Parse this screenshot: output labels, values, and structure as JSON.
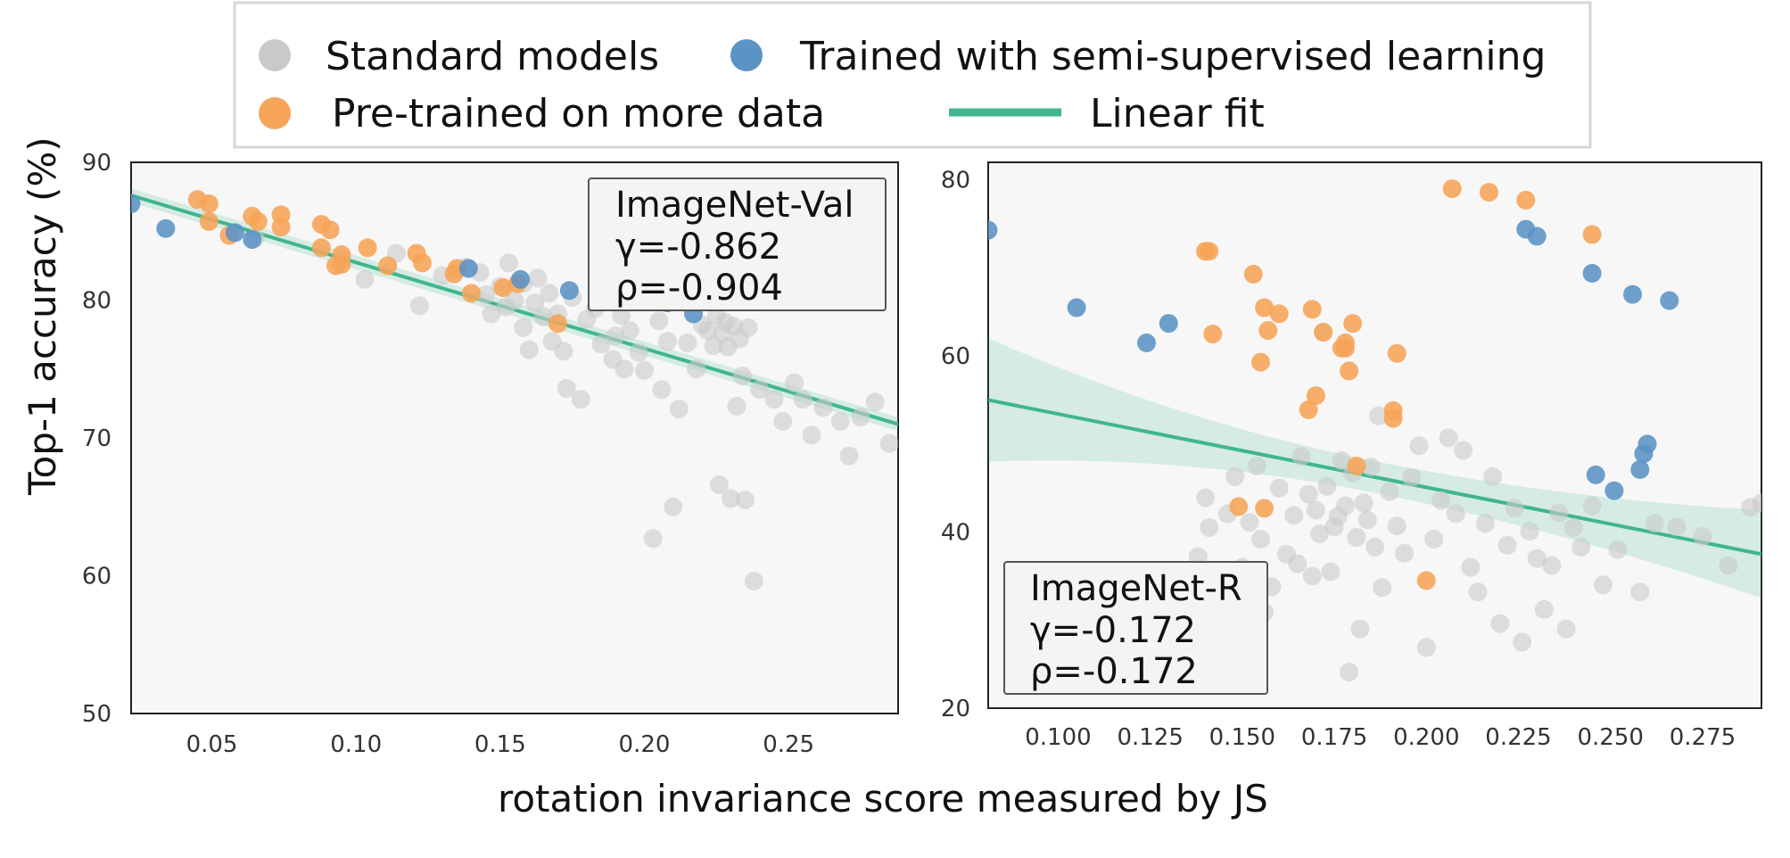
{
  "colors": {
    "standard": "#c9c9c9",
    "semi": "#5b93c5",
    "pretrained": "#f6a457",
    "fit": "#3fb68e"
  },
  "legend": {
    "standard": "Standard models",
    "semi": "Trained with semi-supervised learning",
    "pretrained": "Pre-trained on more data",
    "fit": "Linear fit"
  },
  "ylabel": "Top-1 accuracy (%)",
  "xlabel": "rotation invariance score measured by JS",
  "chart_data": [
    {
      "type": "scatter",
      "name": "ImageNet-Val",
      "annotation": {
        "title": "ImageNet-Val",
        "gamma": "γ=-0.862",
        "rho": "ρ=-0.904"
      },
      "xlim": [
        0.022,
        0.288
      ],
      "ylim": [
        50,
        90
      ],
      "xticks": [
        0.05,
        0.1,
        0.15,
        0.2,
        0.25
      ],
      "xtick_labels": [
        "0.05",
        "0.10",
        "0.15",
        "0.20",
        "0.25"
      ],
      "yticks": [
        50,
        60,
        70,
        80,
        90
      ],
      "ytick_labels": [
        "50",
        "60",
        "70",
        "80",
        "90"
      ],
      "fit": {
        "x": [
          0.022,
          0.288
        ],
        "y": [
          87.6,
          71.0
        ],
        "band": 0.5
      },
      "series": [
        {
          "name": "Standard models",
          "key": "standard",
          "points": [
            [
              0.065,
              84.5
            ],
            [
              0.103,
              81.5
            ],
            [
              0.114,
              83.4
            ],
            [
              0.122,
              79.6
            ],
            [
              0.13,
              81.8
            ],
            [
              0.138,
              82.4
            ],
            [
              0.143,
              82.0
            ],
            [
              0.145,
              80.4
            ],
            [
              0.147,
              79.0
            ],
            [
              0.15,
              81.0
            ],
            [
              0.152,
              79.5
            ],
            [
              0.153,
              82.7
            ],
            [
              0.155,
              80.0
            ],
            [
              0.158,
              81.2
            ],
            [
              0.158,
              78.0
            ],
            [
              0.16,
              76.4
            ],
            [
              0.162,
              79.8
            ],
            [
              0.163,
              81.6
            ],
            [
              0.165,
              78.8
            ],
            [
              0.167,
              80.5
            ],
            [
              0.168,
              77.0
            ],
            [
              0.17,
              79.0
            ],
            [
              0.172,
              76.3
            ],
            [
              0.173,
              73.6
            ],
            [
              0.175,
              80.2
            ],
            [
              0.178,
              72.8
            ],
            [
              0.18,
              78.6
            ],
            [
              0.183,
              79.4
            ],
            [
              0.185,
              76.8
            ],
            [
              0.187,
              80.0
            ],
            [
              0.189,
              75.7
            ],
            [
              0.19,
              77.4
            ],
            [
              0.192,
              78.9
            ],
            [
              0.193,
              75.0
            ],
            [
              0.195,
              77.8
            ],
            [
              0.198,
              76.2
            ],
            [
              0.2,
              74.9
            ],
            [
              0.203,
              62.7
            ],
            [
              0.205,
              78.5
            ],
            [
              0.206,
              73.5
            ],
            [
              0.208,
              77.0
            ],
            [
              0.21,
              65.0
            ],
            [
              0.212,
              72.1
            ],
            [
              0.215,
              76.9
            ],
            [
              0.218,
              75.0
            ],
            [
              0.22,
              78.2
            ],
            [
              0.222,
              77.8
            ],
            [
              0.224,
              76.7
            ],
            [
              0.225,
              78.9
            ],
            [
              0.226,
              66.6
            ],
            [
              0.227,
              77.6
            ],
            [
              0.228,
              78.4
            ],
            [
              0.229,
              76.6
            ],
            [
              0.23,
              65.6
            ],
            [
              0.231,
              78.1
            ],
            [
              0.232,
              72.3
            ],
            [
              0.233,
              77.2
            ],
            [
              0.234,
              74.5
            ],
            [
              0.235,
              65.5
            ],
            [
              0.236,
              78.0
            ],
            [
              0.238,
              59.6
            ],
            [
              0.24,
              73.5
            ],
            [
              0.245,
              72.8
            ],
            [
              0.248,
              71.2
            ],
            [
              0.252,
              74.0
            ],
            [
              0.255,
              72.8
            ],
            [
              0.258,
              70.2
            ],
            [
              0.262,
              72.2
            ],
            [
              0.268,
              71.2
            ],
            [
              0.271,
              68.7
            ],
            [
              0.275,
              71.5
            ],
            [
              0.28,
              72.6
            ],
            [
              0.285,
              69.6
            ]
          ]
        },
        {
          "name": "Pre-trained on more data",
          "key": "pretrained",
          "points": [
            [
              0.045,
              87.3
            ],
            [
              0.049,
              87.0
            ],
            [
              0.049,
              85.7
            ],
            [
              0.056,
              84.7
            ],
            [
              0.064,
              86.1
            ],
            [
              0.066,
              85.7
            ],
            [
              0.074,
              86.2
            ],
            [
              0.074,
              85.3
            ],
            [
              0.088,
              85.5
            ],
            [
              0.088,
              83.8
            ],
            [
              0.091,
              85.1
            ],
            [
              0.093,
              82.5
            ],
            [
              0.095,
              83.3
            ],
            [
              0.095,
              82.6
            ],
            [
              0.104,
              83.8
            ],
            [
              0.111,
              82.5
            ],
            [
              0.121,
              83.4
            ],
            [
              0.123,
              82.7
            ],
            [
              0.134,
              81.9
            ],
            [
              0.135,
              82.3
            ],
            [
              0.14,
              80.5
            ],
            [
              0.151,
              80.9
            ],
            [
              0.156,
              81.2
            ],
            [
              0.17,
              78.3
            ]
          ]
        },
        {
          "name": "Trained with semi-supervised learning",
          "key": "semi",
          "points": [
            [
              0.022,
              87.0
            ],
            [
              0.034,
              85.2
            ],
            [
              0.058,
              84.9
            ],
            [
              0.064,
              84.4
            ],
            [
              0.139,
              82.3
            ],
            [
              0.157,
              81.5
            ],
            [
              0.174,
              80.7
            ],
            [
              0.184,
              80.2
            ],
            [
              0.194,
              80.8
            ],
            [
              0.197,
              80.6
            ],
            [
              0.201,
              80.1
            ],
            [
              0.208,
              79.8
            ],
            [
              0.217,
              79.0
            ]
          ]
        }
      ]
    },
    {
      "type": "scatter",
      "name": "ImageNet-R",
      "annotation": {
        "title": "ImageNet-R",
        "gamma": "γ=-0.172",
        "rho": "ρ=-0.172"
      },
      "xlim": [
        0.081,
        0.291
      ],
      "ylim": [
        20,
        82
      ],
      "xticks": [
        0.1,
        0.125,
        0.15,
        0.175,
        0.2,
        0.225,
        0.25,
        0.275
      ],
      "xtick_labels": [
        "0.100",
        "0.125",
        "0.150",
        "0.175",
        "0.200",
        "0.225",
        "0.250",
        "0.275"
      ],
      "yticks": [
        20,
        40,
        60,
        80
      ],
      "ytick_labels": [
        "20",
        "40",
        "60",
        "80"
      ],
      "fit": {
        "x": [
          0.081,
          0.291
        ],
        "y": [
          55.0,
          37.5
        ],
        "band_left": 7.0,
        "band_mid": 1.8,
        "band_right": 5.0
      },
      "series": [
        {
          "name": "Standard models",
          "key": "standard",
          "points": [
            [
              0.135,
              35.3
            ],
            [
              0.138,
              37.2
            ],
            [
              0.14,
              43.9
            ],
            [
              0.141,
              40.5
            ],
            [
              0.145,
              34.8
            ],
            [
              0.146,
              42.1
            ],
            [
              0.148,
              46.3
            ],
            [
              0.15,
              36.0
            ],
            [
              0.152,
              41.1
            ],
            [
              0.154,
              47.5
            ],
            [
              0.155,
              39.2
            ],
            [
              0.156,
              30.9
            ],
            [
              0.158,
              33.8
            ],
            [
              0.16,
              45.0
            ],
            [
              0.162,
              37.5
            ],
            [
              0.164,
              41.9
            ],
            [
              0.165,
              36.4
            ],
            [
              0.166,
              48.6
            ],
            [
              0.168,
              44.3
            ],
            [
              0.169,
              35.0
            ],
            [
              0.17,
              42.5
            ],
            [
              0.171,
              39.8
            ],
            [
              0.172,
              62.7
            ],
            [
              0.173,
              45.2
            ],
            [
              0.174,
              35.5
            ],
            [
              0.175,
              40.6
            ],
            [
              0.176,
              41.8
            ],
            [
              0.177,
              48.1
            ],
            [
              0.178,
              43.0
            ],
            [
              0.179,
              24.1
            ],
            [
              0.18,
              46.7
            ],
            [
              0.181,
              39.4
            ],
            [
              0.182,
              29.0
            ],
            [
              0.183,
              43.3
            ],
            [
              0.184,
              41.4
            ],
            [
              0.185,
              47.4
            ],
            [
              0.186,
              38.3
            ],
            [
              0.187,
              53.2
            ],
            [
              0.188,
              33.7
            ],
            [
              0.19,
              44.6
            ],
            [
              0.192,
              40.7
            ],
            [
              0.194,
              37.6
            ],
            [
              0.196,
              46.2
            ],
            [
              0.198,
              49.8
            ],
            [
              0.2,
              26.9
            ],
            [
              0.202,
              39.2
            ],
            [
              0.204,
              43.6
            ],
            [
              0.206,
              50.7
            ],
            [
              0.208,
              42.1
            ],
            [
              0.21,
              49.3
            ],
            [
              0.212,
              36.0
            ],
            [
              0.214,
              33.2
            ],
            [
              0.216,
              41.0
            ],
            [
              0.218,
              46.3
            ],
            [
              0.22,
              29.6
            ],
            [
              0.222,
              38.5
            ],
            [
              0.224,
              42.7
            ],
            [
              0.226,
              27.5
            ],
            [
              0.228,
              40.1
            ],
            [
              0.23,
              37.0
            ],
            [
              0.232,
              31.2
            ],
            [
              0.234,
              36.2
            ],
            [
              0.236,
              42.2
            ],
            [
              0.238,
              29.0
            ],
            [
              0.24,
              40.5
            ],
            [
              0.242,
              38.3
            ],
            [
              0.245,
              43.0
            ],
            [
              0.248,
              34.0
            ],
            [
              0.252,
              38.0
            ],
            [
              0.258,
              33.2
            ],
            [
              0.262,
              41.0
            ],
            [
              0.268,
              40.6
            ],
            [
              0.275,
              39.5
            ],
            [
              0.282,
              36.2
            ],
            [
              0.288,
              42.8
            ],
            [
              0.291,
              43.3
            ]
          ]
        },
        {
          "name": "Pre-trained on more data",
          "key": "pretrained",
          "points": [
            [
              0.14,
              71.9
            ],
            [
              0.141,
              71.9
            ],
            [
              0.142,
              62.5
            ],
            [
              0.149,
              42.9
            ],
            [
              0.153,
              69.3
            ],
            [
              0.155,
              59.3
            ],
            [
              0.156,
              65.5
            ],
            [
              0.156,
              42.7
            ],
            [
              0.157,
              62.9
            ],
            [
              0.16,
              64.8
            ],
            [
              0.168,
              53.9
            ],
            [
              0.169,
              65.3
            ],
            [
              0.17,
              55.5
            ],
            [
              0.172,
              62.7
            ],
            [
              0.177,
              60.9
            ],
            [
              0.178,
              61.5
            ],
            [
              0.178,
              60.9
            ],
            [
              0.179,
              58.3
            ],
            [
              0.18,
              63.7
            ],
            [
              0.191,
              53.8
            ],
            [
              0.191,
              52.9
            ],
            [
              0.192,
              60.3
            ],
            [
              0.2,
              34.5
            ],
            [
              0.207,
              79.0
            ],
            [
              0.217,
              78.6
            ],
            [
              0.227,
              77.7
            ],
            [
              0.245,
              73.8
            ],
            [
              0.181,
              47.5
            ]
          ]
        },
        {
          "name": "Trained with semi-supervised learning",
          "key": "semi",
          "points": [
            [
              0.081,
              74.3
            ],
            [
              0.105,
              65.5
            ],
            [
              0.124,
              61.5
            ],
            [
              0.13,
              63.7
            ],
            [
              0.227,
              74.4
            ],
            [
              0.23,
              73.6
            ],
            [
              0.245,
              69.4
            ],
            [
              0.256,
              67.0
            ],
            [
              0.266,
              66.3
            ],
            [
              0.246,
              46.5
            ],
            [
              0.251,
              44.7
            ],
            [
              0.259,
              48.9
            ],
            [
              0.26,
              50.0
            ],
            [
              0.258,
              47.1
            ]
          ]
        }
      ]
    }
  ]
}
